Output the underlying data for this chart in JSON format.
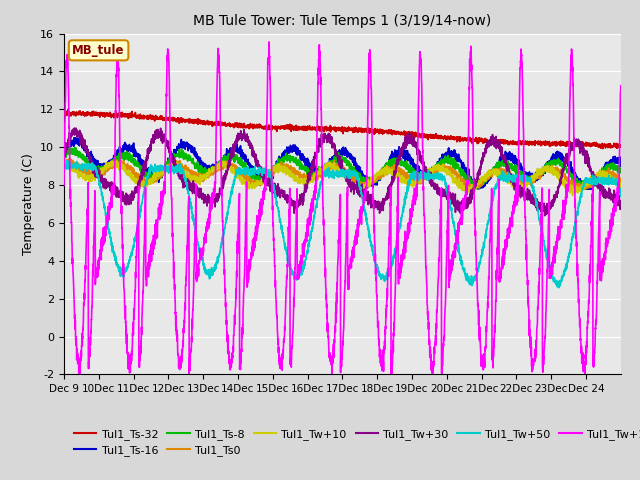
{
  "title": "MB Tule Tower: Tule Temps 1 (3/19/14-now)",
  "ylabel": "Temperature (C)",
  "ylim": [
    -2,
    16
  ],
  "yticks": [
    -2,
    0,
    2,
    4,
    6,
    8,
    10,
    12,
    14,
    16
  ],
  "legend_label": "MB_tule",
  "series": {
    "Tul1_Ts-32": {
      "color": "#cc0000",
      "lw": 1.2
    },
    "Tul1_Ts-16": {
      "color": "#0000cc",
      "lw": 1.2
    },
    "Tul1_Ts-8": {
      "color": "#00bb00",
      "lw": 1.2
    },
    "Tul1_Ts0": {
      "color": "#dd8800",
      "lw": 1.2
    },
    "Tul1_Tw+10": {
      "color": "#cccc00",
      "lw": 1.2
    },
    "Tul1_Tw+30": {
      "color": "#880088",
      "lw": 1.2
    },
    "Tul1_Tw+50": {
      "color": "#00cccc",
      "lw": 1.2
    },
    "Tul1_Tw+100": {
      "color": "#ff00ff",
      "lw": 1.2
    }
  },
  "plot_bg": "#e8e8e8",
  "grid_color": "#ffffff",
  "figsize": [
    6.4,
    4.8
  ],
  "dpi": 100
}
